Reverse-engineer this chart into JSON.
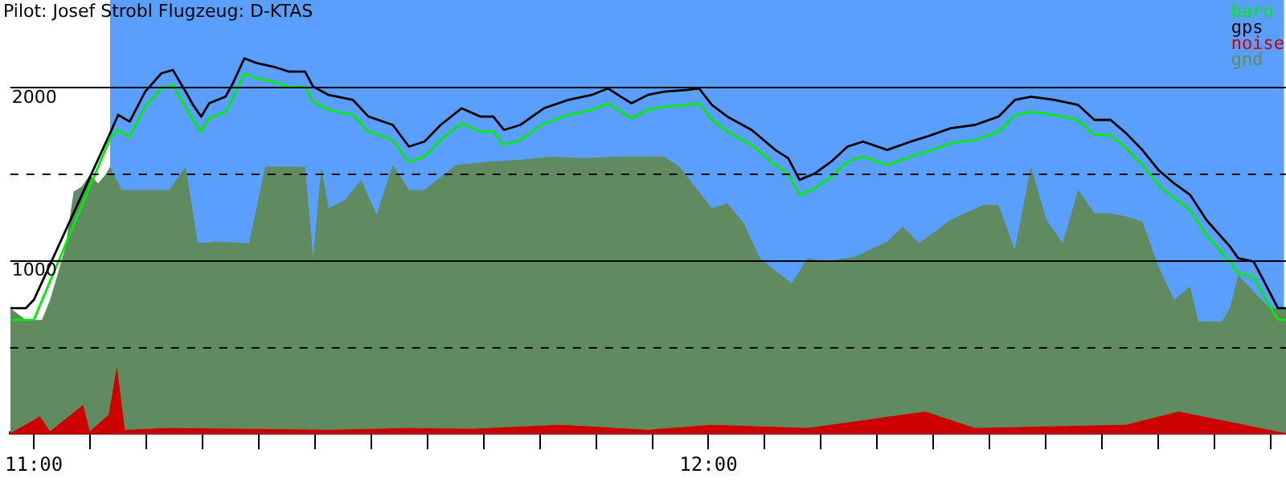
{
  "chart_data": {
    "type": "line",
    "title": "Pilot: Josef Strobl Flugzeug: D-KTAS",
    "xlim": [
      10.965,
      12.856
    ],
    "ylim": [
      0,
      2500
    ],
    "xticks": [
      {
        "value": 11,
        "label": "11:00"
      },
      {
        "value": 11.0833,
        "label": null
      },
      {
        "value": 11.1667,
        "label": null
      },
      {
        "value": 11.25,
        "label": null
      },
      {
        "value": 11.3333,
        "label": null
      },
      {
        "value": 11.4167,
        "label": null
      },
      {
        "value": 11.5,
        "label": null
      },
      {
        "value": 11.5833,
        "label": null
      },
      {
        "value": 11.6667,
        "label": null
      },
      {
        "value": 11.75,
        "label": null
      },
      {
        "value": 11.8333,
        "label": null
      },
      {
        "value": 11.9167,
        "label": null
      },
      {
        "value": 12,
        "label": "12:00"
      },
      {
        "value": 12.0833,
        "label": null
      },
      {
        "value": 12.1667,
        "label": null
      },
      {
        "value": 12.25,
        "label": null
      },
      {
        "value": 12.3333,
        "label": null
      },
      {
        "value": 12.4167,
        "label": null
      },
      {
        "value": 12.5,
        "label": null
      },
      {
        "value": 12.5833,
        "label": null
      },
      {
        "value": 12.6667,
        "label": null
      },
      {
        "value": 12.75,
        "label": null
      },
      {
        "value": 12.8333,
        "label": null
      }
    ],
    "yticks": [
      {
        "value": 500,
        "label": null
      },
      1000,
      {
        "value": 1500,
        "label": null
      },
      2000
    ],
    "grid": "y",
    "legend": "top right",
    "marker": "none",
    "bands": [
      {
        "axis": "x",
        "from": 11.113,
        "to": 12.853,
        "color": "#5a9efe"
      }
    ],
    "series": [
      {
        "name": "baro",
        "color": "#00ee00",
        "type": "line",
        "x": [
          10.965,
          10.988,
          11.0,
          11.113,
          11.125,
          11.142,
          11.165,
          11.189,
          11.206,
          11.225,
          11.236,
          11.248,
          11.26,
          11.284,
          11.295,
          11.312,
          11.331,
          11.355,
          11.378,
          11.402,
          11.414,
          11.437,
          11.473,
          11.496,
          11.532,
          11.556,
          11.579,
          11.603,
          11.634,
          11.662,
          11.681,
          11.697,
          11.721,
          11.756,
          11.792,
          11.827,
          11.851,
          11.87,
          11.886,
          11.91,
          11.934,
          11.969,
          11.986,
          12.005,
          12.028,
          12.064,
          12.099,
          12.118,
          12.135,
          12.158,
          12.182,
          12.206,
          12.229,
          12.265,
          12.3,
          12.324,
          12.359,
          12.395,
          12.43,
          12.454,
          12.478,
          12.513,
          12.548,
          12.572,
          12.596,
          12.619,
          12.643,
          12.667,
          12.69,
          12.714,
          12.738,
          12.773,
          12.785,
          12.808,
          12.825,
          12.844,
          12.856
        ],
        "values": [
          654,
          654,
          654,
          1700,
          1750,
          1711,
          1884,
          1990,
          2009,
          1884,
          1807,
          1740,
          1817,
          1855,
          1932,
          2076,
          2048,
          2028,
          2000,
          2000,
          1913,
          1865,
          1836,
          1740,
          1692,
          1567,
          1596,
          1692,
          1788,
          1740,
          1740,
          1663,
          1692,
          1788,
          1836,
          1865,
          1903,
          1855,
          1817,
          1865,
          1884,
          1894,
          1903,
          1807,
          1740,
          1663,
          1548,
          1500,
          1375,
          1413,
          1480,
          1567,
          1596,
          1548,
          1596,
          1625,
          1673,
          1692,
          1740,
          1836,
          1855,
          1836,
          1807,
          1721,
          1721,
          1644,
          1548,
          1432,
          1355,
          1288,
          1144,
          990,
          923,
          903,
          778,
          654,
          654
        ]
      },
      {
        "name": "gps",
        "color": "#000000",
        "type": "line",
        "x": [
          10.965,
          10.988,
          11.0,
          11.113,
          11.125,
          11.142,
          11.165,
          11.189,
          11.206,
          11.225,
          11.236,
          11.248,
          11.26,
          11.284,
          11.295,
          11.312,
          11.331,
          11.355,
          11.378,
          11.402,
          11.414,
          11.437,
          11.473,
          11.496,
          11.532,
          11.556,
          11.579,
          11.603,
          11.634,
          11.662,
          11.681,
          11.697,
          11.721,
          11.756,
          11.792,
          11.827,
          11.851,
          11.87,
          11.886,
          11.91,
          11.934,
          11.969,
          11.986,
          12.005,
          12.028,
          12.064,
          12.099,
          12.118,
          12.135,
          12.158,
          12.182,
          12.206,
          12.229,
          12.265,
          12.3,
          12.324,
          12.359,
          12.395,
          12.43,
          12.454,
          12.478,
          12.513,
          12.548,
          12.572,
          12.596,
          12.619,
          12.643,
          12.667,
          12.69,
          12.714,
          12.738,
          12.773,
          12.785,
          12.808,
          12.825,
          12.844,
          12.856
        ],
        "values": [
          721,
          721,
          769,
          1731,
          1837,
          1798,
          1971,
          2077,
          2096,
          1971,
          1894,
          1827,
          1904,
          1942,
          2019,
          2163,
          2135,
          2115,
          2087,
          2087,
          2000,
          1952,
          1923,
          1827,
          1779,
          1654,
          1683,
          1779,
          1875,
          1827,
          1827,
          1750,
          1779,
          1875,
          1923,
          1952,
          1990,
          1942,
          1904,
          1952,
          1971,
          1981,
          1990,
          1894,
          1827,
          1750,
          1635,
          1587,
          1462,
          1500,
          1567,
          1654,
          1683,
          1635,
          1683,
          1712,
          1760,
          1779,
          1827,
          1923,
          1942,
          1923,
          1894,
          1808,
          1808,
          1731,
          1635,
          1519,
          1442,
          1375,
          1231,
          1077,
          1010,
          990,
          865,
          721,
          721
        ]
      },
      {
        "name": "noise",
        "color": "#cc0000",
        "type": "area",
        "x": [
          10.965,
          11.009,
          11.024,
          11.073,
          11.083,
          11.111,
          11.123,
          11.135,
          11.201,
          11.319,
          11.437,
          11.556,
          11.65,
          11.78,
          11.91,
          12.005,
          12.147,
          12.321,
          12.395,
          12.619,
          12.697,
          12.856
        ],
        "values": [
          0,
          96,
          10,
          163,
          10,
          106,
          385,
          20,
          30,
          25,
          20,
          30,
          25,
          48,
          20,
          48,
          30,
          125,
          30,
          48,
          125,
          0
        ]
      },
      {
        "name": "gnd",
        "color": "#608a60",
        "type": "area",
        "x": [
          10.965,
          10.988,
          11.012,
          11.024,
          11.035,
          11.047,
          11.059,
          11.071,
          11.083,
          11.095,
          11.106,
          11.113,
          11.13,
          11.154,
          11.201,
          11.225,
          11.243,
          11.272,
          11.319,
          11.343,
          11.378,
          11.402,
          11.414,
          11.426,
          11.437,
          11.461,
          11.485,
          11.508,
          11.532,
          11.556,
          11.579,
          11.626,
          11.674,
          11.721,
          11.768,
          11.816,
          11.863,
          11.91,
          11.934,
          11.957,
          12.005,
          12.028,
          12.052,
          12.076,
          12.123,
          12.147,
          12.17,
          12.218,
          12.265,
          12.288,
          12.312,
          12.359,
          12.407,
          12.43,
          12.454,
          12.478,
          12.501,
          12.525,
          12.548,
          12.572,
          12.596,
          12.619,
          12.643,
          12.667,
          12.69,
          12.714,
          12.726,
          12.761,
          12.773,
          12.785,
          12.808,
          12.832,
          12.856
        ],
        "values": [
          721,
          654,
          654,
          769,
          913,
          1077,
          1394,
          1423,
          1490,
          1442,
          1490,
          1538,
          1404,
          1404,
          1404,
          1538,
          1096,
          1106,
          1096,
          1538,
          1538,
          1538,
          1010,
          1538,
          1298,
          1346,
          1462,
          1260,
          1548,
          1404,
          1404,
          1548,
          1567,
          1577,
          1596,
          1587,
          1596,
          1596,
          1596,
          1538,
          1298,
          1327,
          1212,
          1010,
          865,
          1010,
          990,
          1019,
          1106,
          1192,
          1096,
          1231,
          1317,
          1317,
          1058,
          1538,
          1231,
          1096,
          1404,
          1269,
          1269,
          1250,
          1221,
          962,
          769,
          846,
          644,
          644,
          721,
          913,
          817,
          721,
          721
        ]
      }
    ]
  }
}
